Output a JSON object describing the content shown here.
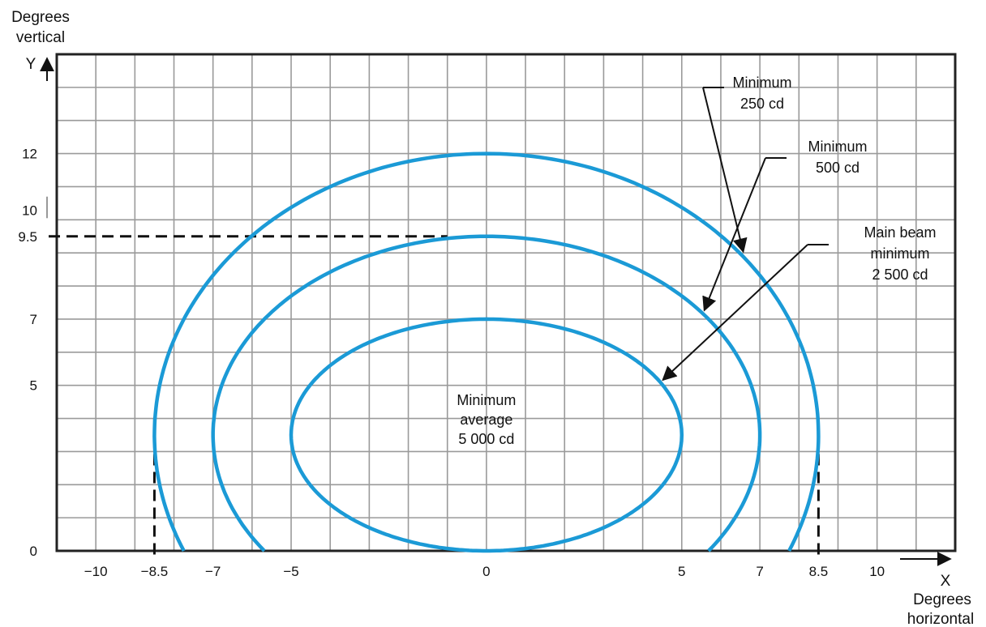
{
  "axes": {
    "y_label": [
      "Degrees",
      "vertical"
    ],
    "y_letter": "Y",
    "x_label": [
      "Degrees",
      "horizontal"
    ],
    "x_letter": "X",
    "x_ticks": [
      {
        "value": -10,
        "label": "−10"
      },
      {
        "value": -8.5,
        "label": "−8.5"
      },
      {
        "value": -7,
        "label": "−7"
      },
      {
        "value": -5,
        "label": "−5"
      },
      {
        "value": 0,
        "label": "0"
      },
      {
        "value": 5,
        "label": "5"
      },
      {
        "value": 7,
        "label": "7"
      },
      {
        "value": 8.5,
        "label": "8.5"
      },
      {
        "value": 10,
        "label": "10"
      }
    ],
    "y_ticks": [
      {
        "value": 0,
        "label": "0"
      },
      {
        "value": 5,
        "label": "5"
      },
      {
        "value": 7,
        "label": "7"
      },
      {
        "value": 9.5,
        "label": "9.5"
      },
      {
        "value": 10,
        "label": "10"
      },
      {
        "value": 12,
        "label": "12"
      }
    ],
    "x_range": [
      -11,
      12
    ],
    "y_range": [
      0,
      15
    ]
  },
  "contours": [
    {
      "id": "min-250",
      "label": [
        "Minimum",
        "250 cd"
      ],
      "x_extent": 8.5,
      "y_top": 12,
      "center_y": 3.5
    },
    {
      "id": "min-500",
      "label": [
        "Minimum",
        "500 cd"
      ],
      "x_extent": 7,
      "y_top": 9.5,
      "center_y": 3.5
    },
    {
      "id": "main-beam",
      "label": [
        "Main beam",
        "minimum",
        "2 500 cd"
      ],
      "x_extent": 5,
      "y_top": 7,
      "center_y": 3.5
    }
  ],
  "center_label": [
    "Minimum",
    "average",
    "5 000 cd"
  ],
  "reference_lines": {
    "y": 9.5,
    "x_left": -8.5,
    "x_right": 8.5
  },
  "colors": {
    "contour": "#1b9ad6",
    "grid": "#9a9a9a",
    "frame": "#222222"
  }
}
